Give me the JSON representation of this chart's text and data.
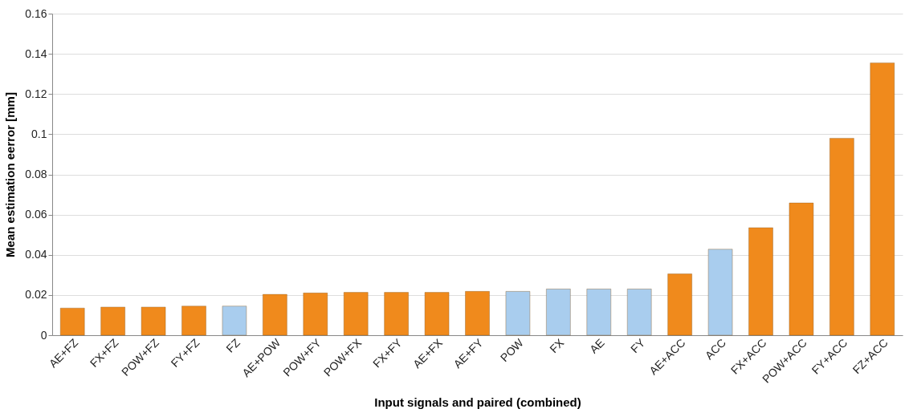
{
  "chart_data": {
    "type": "bar",
    "xlabel": "Input signals and paired (combined)",
    "ylabel": "Mean estimation eerror [mm]",
    "categories": [
      "AE+FZ",
      "FX+FZ",
      "POW+FZ",
      "FY+FZ",
      "FZ",
      "AE+POW",
      "POW+FY",
      "POW+FX",
      "FX+FY",
      "AE+FX",
      "AE+FY",
      "POW",
      "FX",
      "AE",
      "FY",
      "AE+ACC",
      "ACC",
      "FX+ACC",
      "POW+ACC",
      "FY+ACC",
      "FZ+ACC"
    ],
    "values": [
      0.0135,
      0.014,
      0.014,
      0.0145,
      0.0145,
      0.0203,
      0.021,
      0.0213,
      0.0213,
      0.0213,
      0.0218,
      0.0218,
      0.023,
      0.023,
      0.023,
      0.0305,
      0.0428,
      0.0535,
      0.0658,
      0.098,
      0.1355
    ],
    "colors": [
      "#f08a1c",
      "#f08a1c",
      "#f08a1c",
      "#f08a1c",
      "#a9cdee",
      "#f08a1c",
      "#f08a1c",
      "#f08a1c",
      "#f08a1c",
      "#f08a1c",
      "#f08a1c",
      "#a9cdee",
      "#a9cdee",
      "#a9cdee",
      "#a9cdee",
      "#f08a1c",
      "#a9cdee",
      "#f08a1c",
      "#f08a1c",
      "#f08a1c",
      "#f08a1c"
    ],
    "ylim": [
      0,
      0.16
    ],
    "yticks": [
      0,
      0.02,
      0.04,
      0.06,
      0.08,
      {
        "value": 0.1,
        "label": "0.1"
      },
      0.12,
      0.14,
      0.16
    ],
    "grid": "y",
    "legend": false
  }
}
